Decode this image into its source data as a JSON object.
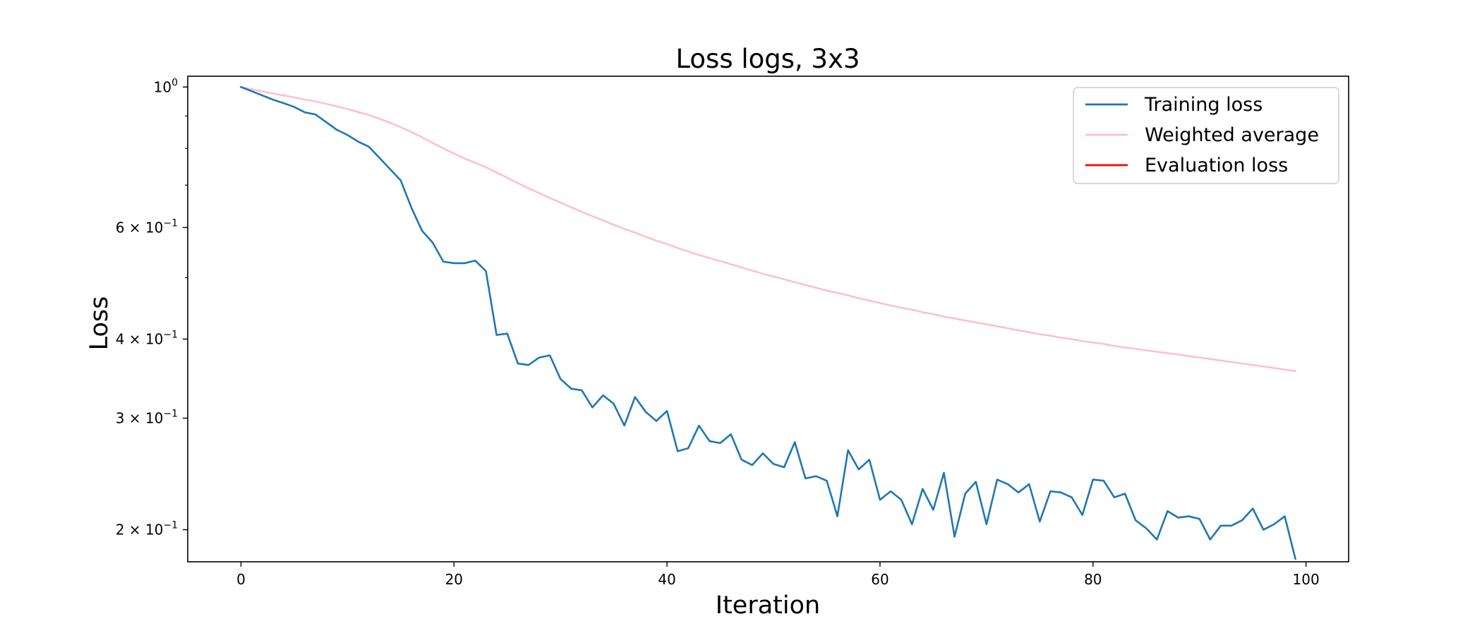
{
  "chart_data": {
    "type": "line",
    "title": "Loss logs, 3x3",
    "xlabel": "Iteration",
    "ylabel": "Loss",
    "xlim": [
      -5,
      104
    ],
    "ylim": [
      0.178,
      1.04
    ],
    "yscale": "log",
    "grid": false,
    "legend_position": "top-right",
    "xticks": [
      {
        "value": 0,
        "label": "0"
      },
      {
        "value": 20,
        "label": "20"
      },
      {
        "value": 40,
        "label": "40"
      },
      {
        "value": 60,
        "label": "60"
      },
      {
        "value": 80,
        "label": "80"
      },
      {
        "value": 100,
        "label": "100"
      }
    ],
    "yticks_major": [
      {
        "value": 1.0,
        "base": "10",
        "exp": "0"
      },
      {
        "value": 0.6,
        "base": "6 × 10",
        "exp": "−1"
      },
      {
        "value": 0.4,
        "base": "4 × 10",
        "exp": "−1"
      },
      {
        "value": 0.3,
        "base": "3 × 10",
        "exp": "−1"
      },
      {
        "value": 0.2,
        "base": "2 × 10",
        "exp": "−1"
      }
    ],
    "yticks_minor": [
      0.9,
      0.8,
      0.7,
      0.5
    ],
    "series": [
      {
        "name": "Training loss",
        "color": "#1f77b4",
        "values": [
          1.0,
          0.985,
          0.97,
          0.955,
          0.943,
          0.93,
          0.912,
          0.905,
          0.88,
          0.856,
          0.84,
          0.82,
          0.805,
          0.773,
          0.742,
          0.712,
          0.645,
          0.593,
          0.568,
          0.53,
          0.527,
          0.527,
          0.532,
          0.512,
          0.406,
          0.408,
          0.366,
          0.364,
          0.374,
          0.377,
          0.346,
          0.334,
          0.332,
          0.312,
          0.326,
          0.316,
          0.292,
          0.324,
          0.307,
          0.297,
          0.308,
          0.266,
          0.269,
          0.292,
          0.276,
          0.274,
          0.283,
          0.258,
          0.253,
          0.264,
          0.254,
          0.251,
          0.275,
          0.241,
          0.243,
          0.239,
          0.21,
          0.267,
          0.249,
          0.258,
          0.223,
          0.23,
          0.223,
          0.204,
          0.232,
          0.215,
          0.246,
          0.195,
          0.228,
          0.238,
          0.204,
          0.24,
          0.236,
          0.229,
          0.236,
          0.206,
          0.23,
          0.229,
          0.225,
          0.211,
          0.24,
          0.239,
          0.225,
          0.228,
          0.207,
          0.201,
          0.193,
          0.214,
          0.209,
          0.21,
          0.208,
          0.193,
          0.203,
          0.203,
          0.207,
          0.216,
          0.2,
          0.204,
          0.21,
          0.18
        ]
      },
      {
        "name": "Weighted average",
        "color": "#ffc0cb",
        "values": [
          1.0,
          0.992,
          0.984,
          0.977,
          0.97,
          0.963,
          0.955,
          0.949,
          0.941,
          0.932,
          0.923,
          0.913,
          0.903,
          0.891,
          0.878,
          0.864,
          0.849,
          0.833,
          0.816,
          0.8,
          0.785,
          0.771,
          0.759,
          0.747,
          0.733,
          0.719,
          0.705,
          0.692,
          0.68,
          0.668,
          0.657,
          0.646,
          0.635,
          0.625,
          0.616,
          0.606,
          0.597,
          0.589,
          0.58,
          0.572,
          0.565,
          0.557,
          0.55,
          0.543,
          0.537,
          0.531,
          0.525,
          0.519,
          0.513,
          0.507,
          0.502,
          0.497,
          0.492,
          0.487,
          0.482,
          0.477,
          0.473,
          0.469,
          0.464,
          0.46,
          0.456,
          0.452,
          0.448,
          0.445,
          0.441,
          0.438,
          0.434,
          0.431,
          0.428,
          0.425,
          0.422,
          0.419,
          0.416,
          0.413,
          0.41,
          0.407,
          0.405,
          0.402,
          0.4,
          0.397,
          0.395,
          0.393,
          0.39,
          0.388,
          0.386,
          0.384,
          0.382,
          0.38,
          0.378,
          0.376,
          0.374,
          0.372,
          0.37,
          0.368,
          0.366,
          0.364,
          0.362,
          0.36,
          0.358,
          0.356
        ]
      },
      {
        "name": "Evaluation loss",
        "color": "#ff0000",
        "values": []
      }
    ]
  }
}
